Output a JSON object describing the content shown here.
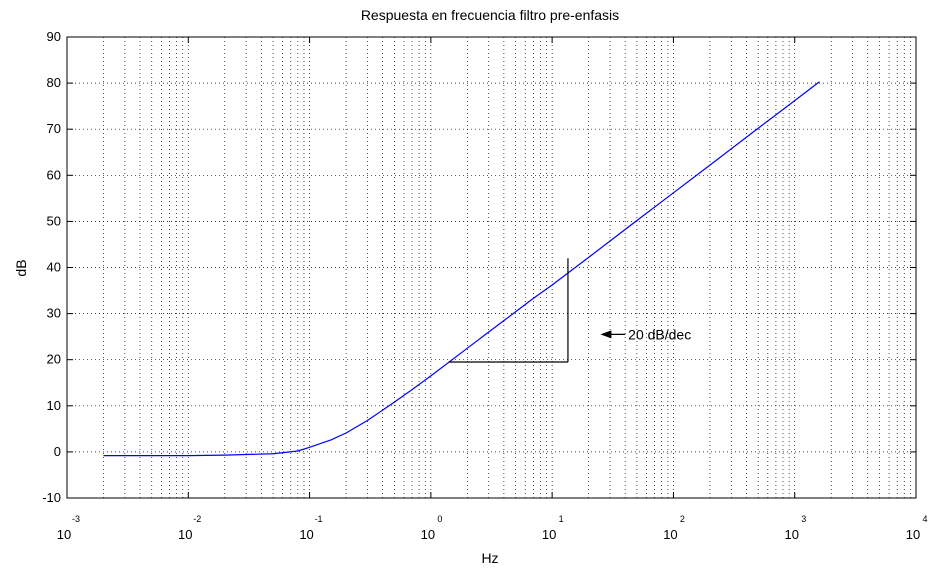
{
  "chart_data": {
    "type": "line",
    "title": "Respuesta en frecuencia filtro pre-enfasis",
    "xlabel": "Hz",
    "ylabel": "dB",
    "x_scale": "log",
    "xlim": [
      0.001,
      10000
    ],
    "ylim": [
      -10,
      90
    ],
    "grid": true,
    "x_ticks": [
      0.001,
      0.01,
      0.1,
      1,
      10,
      100,
      1000,
      10000
    ],
    "x_tick_labels": [
      {
        "base": "10",
        "exp": "-3"
      },
      {
        "base": "10",
        "exp": "-2"
      },
      {
        "base": "10",
        "exp": "-1"
      },
      {
        "base": "10",
        "exp": "0"
      },
      {
        "base": "10",
        "exp": "1"
      },
      {
        "base": "10",
        "exp": "2"
      },
      {
        "base": "10",
        "exp": "3"
      },
      {
        "base": "10",
        "exp": "4"
      }
    ],
    "y_ticks": [
      -10,
      0,
      10,
      20,
      30,
      40,
      50,
      60,
      70,
      80,
      90
    ],
    "series": [
      {
        "color": "#0000ff",
        "x": [
          0.002,
          0.005,
          0.01,
          0.02,
          0.05,
          0.08,
          0.1,
          0.15,
          0.2,
          0.3,
          0.5,
          0.7,
          1,
          1.5,
          2,
          3,
          5,
          7,
          10,
          20,
          50,
          100,
          200,
          500,
          1000,
          1600
        ],
        "y": [
          -0.8,
          -0.8,
          -0.8,
          -0.7,
          -0.4,
          0.2,
          1.0,
          2.6,
          4.1,
          6.8,
          10.8,
          13.5,
          16.5,
          20.0,
          22.5,
          26.0,
          30.4,
          33.3,
          36.2,
          42.2,
          50.2,
          56.2,
          62.2,
          70.2,
          76.2,
          80.3
        ]
      }
    ],
    "annotation": {
      "text": "20 dB/dec",
      "triangle": {
        "x1": 1.4,
        "x2": 13.5,
        "y_low": 19.5,
        "y_high": 42.0
      },
      "arrow_from_x": 40,
      "arrow_to_x": 25,
      "arrow_y": 25.5
    }
  }
}
